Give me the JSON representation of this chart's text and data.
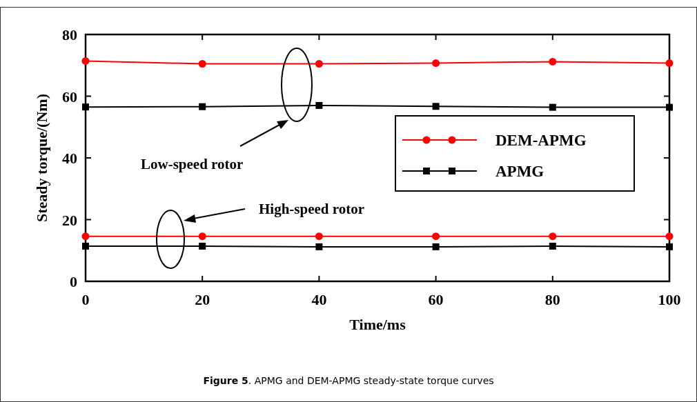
{
  "chart_data": {
    "type": "line",
    "xlabel": "Time/ms",
    "ylabel": "Steady torque/(Nm)",
    "x": [
      0,
      20,
      40,
      60,
      80,
      100
    ],
    "xlim": [
      0,
      100
    ],
    "xticks": [
      0,
      20,
      40,
      60,
      80,
      100
    ],
    "ylim": [
      0,
      80
    ],
    "yticks": [
      0,
      20,
      40,
      60,
      80
    ],
    "grid": false,
    "legend": "right",
    "marker": "circle",
    "line_style": "solid",
    "series": [
      {
        "name": "DEM-APMG",
        "color": "#ff0000",
        "marker": "circle",
        "values": [
          71.4,
          70.5,
          70.5,
          70.7,
          71.2,
          70.7
        ]
      },
      {
        "name": "APMG",
        "color": "#000000",
        "marker": "square",
        "values": [
          56.5,
          56.6,
          57.0,
          56.7,
          56.4,
          56.4
        ]
      },
      {
        "color": "#ff0000",
        "marker": "circle",
        "values": [
          14.6,
          14.6,
          14.6,
          14.6,
          14.6,
          14.6
        ]
      },
      {
        "color": "#000000",
        "marker": "square",
        "values": [
          11.4,
          11.4,
          11.2,
          11.2,
          11.4,
          11.2
        ]
      }
    ],
    "annotations": [
      "Low-speed rotor",
      "High-speed rotor",
      "Figure 5. APMG and DEM-APMG steady-state torque curves"
    ]
  }
}
